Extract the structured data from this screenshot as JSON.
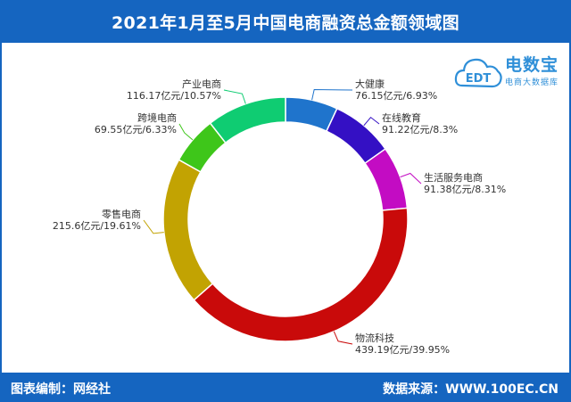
{
  "header": {
    "title": "2021年1月至5月中国电商融资总金额领域图"
  },
  "logo": {
    "name": "电数宝",
    "sub": "电商大数据库",
    "icon_text": "EDT"
  },
  "footer": {
    "left": "图表编制：网经社",
    "right": "数据来源：WWW.100EC.CN"
  },
  "chart_data": {
    "type": "pie",
    "title": "2021年1月至5月中国电商融资总金额领域图",
    "slices": [
      {
        "label": "大健康",
        "value": 76.15,
        "percent": 6.93,
        "value_text": "76.15亿元/6.93%",
        "color": "#1f74cc"
      },
      {
        "label": "在线教育",
        "value": 91.22,
        "percent": 8.3,
        "value_text": "91.22亿元/8.3%",
        "color": "#3410c4"
      },
      {
        "label": "生活服务电商",
        "value": 91.38,
        "percent": 8.31,
        "value_text": "91.38亿元/8.31%",
        "color": "#c30cc3"
      },
      {
        "label": "物流科技",
        "value": 439.19,
        "percent": 39.95,
        "value_text": "439.19亿元/39.95%",
        "color": "#c90a0a"
      },
      {
        "label": "零售电商",
        "value": 215.6,
        "percent": 19.61,
        "value_text": "215.6亿元/19.61%",
        "color": "#c2a302"
      },
      {
        "label": "跨境电商",
        "value": 69.55,
        "percent": 6.33,
        "value_text": "69.55亿元/6.33%",
        "color": "#3ec61a"
      },
      {
        "label": "产业电商",
        "value": 116.17,
        "percent": 10.57,
        "value_text": "116.17亿元/10.57%",
        "color": "#0fcc72"
      }
    ]
  }
}
